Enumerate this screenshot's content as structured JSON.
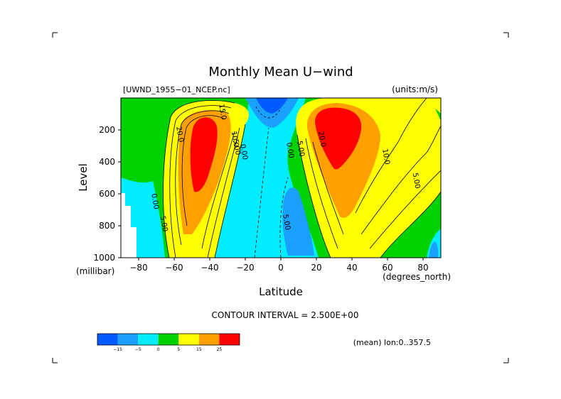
{
  "chart_data": {
    "type": "contour",
    "title": "Monthly Mean U−wind",
    "file_label": "[UWND_1955−01_NCEP.nc]",
    "units_label": "(units:m/s)",
    "ylabel": "Level",
    "y_unit": "(millibar)",
    "xlabel": "Latitude",
    "x_unit": "(degrees_north)",
    "x_ticks": [
      -80,
      -60,
      -40,
      -20,
      0,
      20,
      40,
      60,
      80
    ],
    "x_tick_labels": [
      "−80",
      "−60",
      "−40",
      "−20",
      "0",
      "20",
      "40",
      "60",
      "80"
    ],
    "xlim": [
      -90,
      90
    ],
    "y_ticks": [
      200,
      400,
      600,
      800,
      1000
    ],
    "y_tick_labels": [
      "200",
      "400",
      "600",
      "800",
      "1000"
    ],
    "ylim": [
      1000,
      0
    ],
    "contour_interval_text": "CONTOUR INTERVAL = 2.500E+00",
    "mean_note": "(mean) lon:0..357.5",
    "contour_labels": [
      {
        "text": "0.00",
        "lat": -72,
        "lev": 650
      },
      {
        "text": "5.00",
        "lat": -67,
        "lev": 790
      },
      {
        "text": "20.0",
        "lat": -58,
        "lev": 230
      },
      {
        "text": "10.0",
        "lat": -27,
        "lev": 260
      },
      {
        "text": "5.00",
        "lat": -26,
        "lev": 310
      },
      {
        "text": "0.00",
        "lat": -22,
        "lev": 340
      },
      {
        "text": "15.0",
        "lat": -34,
        "lev": 90
      },
      {
        "text": "0.00",
        "lat": 4,
        "lev": 330
      },
      {
        "text": "5.00",
        "lat": 10,
        "lev": 320
      },
      {
        "text": "5.00",
        "lat": 2,
        "lev": 780
      },
      {
        "text": "20.0",
        "lat": 22,
        "lev": 260
      },
      {
        "text": "10.0",
        "lat": 58,
        "lev": 370
      },
      {
        "text": "5.00",
        "lat": 75,
        "lev": 520
      }
    ],
    "colorbar": {
      "levels": [
        "−15",
        "−5",
        "0",
        "5",
        "15",
        "25"
      ],
      "colors": [
        "#005aff",
        "#1aa0ff",
        "#00ecff",
        "#00d200",
        "#ffff00",
        "#ffa000",
        "#ff0000"
      ]
    },
    "fill_colors": {
      "neg_strong": "#005aff",
      "neg_mid": "#1aa0ff",
      "neg_weak": "#00ecff",
      "pos_weak": "#00d200",
      "pos_mid": "#ffff00",
      "pos_strong": "#ffa000",
      "jet_core": "#ff0000"
    }
  }
}
